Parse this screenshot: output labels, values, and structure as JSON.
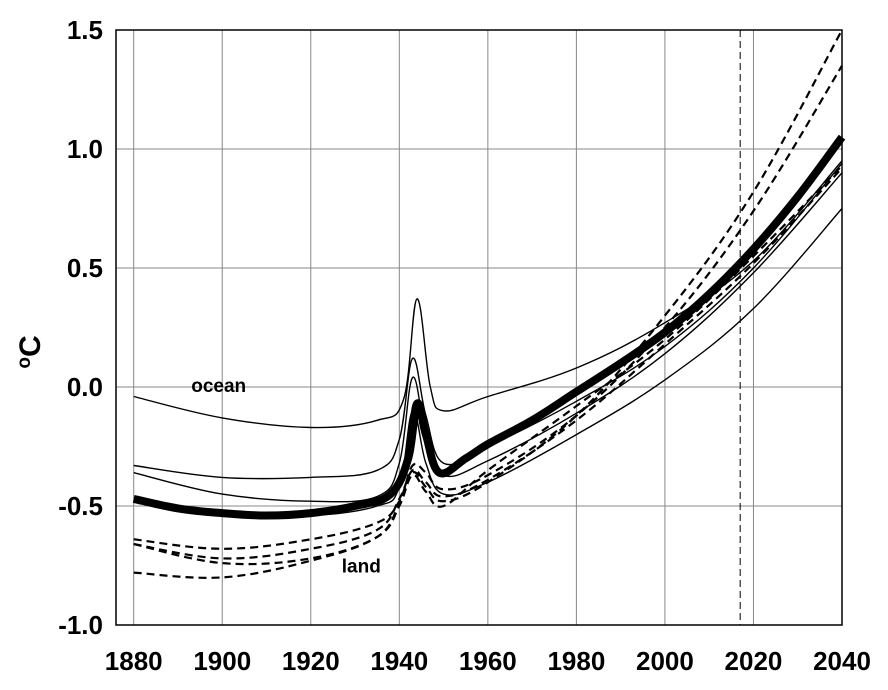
{
  "chart_data": {
    "type": "line",
    "title": "",
    "xlabel": "",
    "ylabel": "oC",
    "ylabel_parts": {
      "degree": "o",
      "unit": "C"
    },
    "xlim": [
      1876,
      2040
    ],
    "ylim": [
      -1.0,
      1.5
    ],
    "x_ticks": [
      1880,
      1900,
      1920,
      1940,
      1960,
      1980,
      2000,
      2020,
      2040
    ],
    "x_tick_labels": [
      "1880",
      "1900",
      "1920",
      "1940",
      "1960",
      "1980",
      "2000",
      "2020",
      "2040"
    ],
    "y_ticks": [
      -1.0,
      -0.5,
      0.0,
      0.5,
      1.0,
      1.5
    ],
    "y_tick_labels": [
      "-1.0",
      "-0.5",
      "0.0",
      "0.5",
      "1.0",
      "1.5"
    ],
    "x_gridlines": [
      1880,
      1900,
      1920,
      1940,
      1960,
      1980,
      2000,
      2020,
      2040
    ],
    "y_gridlines": [
      -0.5,
      0.0,
      0.5,
      1.0
    ],
    "grid": true,
    "vertical_reference_line": {
      "x": 2017,
      "style": "dashed"
    },
    "annotations": [
      {
        "text": "ocean",
        "x": 1893,
        "y": -0.02
      },
      {
        "text": "land",
        "x": 1927,
        "y": -0.78
      }
    ],
    "colors": {
      "lines": "#000000",
      "grid": "#888888",
      "background": "#ffffff"
    },
    "series": [
      {
        "group": "ocean",
        "style": "solid",
        "weight": "thin",
        "x": [
          1880,
          1900,
          1920,
          1935,
          1941,
          1944,
          1947,
          1950,
          1960,
          1980,
          2000,
          2020,
          2040
        ],
        "y": [
          -0.04,
          -0.13,
          -0.17,
          -0.14,
          -0.05,
          0.37,
          0.0,
          -0.1,
          -0.04,
          0.08,
          0.27,
          0.53,
          0.95
        ]
      },
      {
        "group": "ocean",
        "style": "solid",
        "weight": "thin",
        "x": [
          1880,
          1900,
          1920,
          1935,
          1940,
          1943,
          1946,
          1950,
          1960,
          1980,
          2000,
          2020,
          2040
        ],
        "y": [
          -0.33,
          -0.38,
          -0.38,
          -0.35,
          -0.22,
          0.12,
          -0.12,
          -0.32,
          -0.25,
          -0.06,
          0.17,
          0.5,
          0.94
        ]
      },
      {
        "group": "ocean",
        "style": "solid",
        "weight": "thin",
        "x": [
          1880,
          1900,
          1920,
          1935,
          1940,
          1943,
          1946,
          1950,
          1960,
          1980,
          2000,
          2020,
          2040
        ],
        "y": [
          -0.36,
          -0.45,
          -0.48,
          -0.46,
          -0.32,
          0.04,
          -0.2,
          -0.37,
          -0.31,
          -0.11,
          0.14,
          0.48,
          0.9
        ]
      },
      {
        "group": "ocean",
        "style": "solid",
        "weight": "thin",
        "x": [
          1880,
          1900,
          1920,
          1935,
          1940,
          1943,
          1946,
          1950,
          1960,
          1980,
          2000,
          2020,
          2040
        ],
        "y": [
          -0.48,
          -0.53,
          -0.54,
          -0.5,
          -0.42,
          -0.1,
          -0.32,
          -0.45,
          -0.4,
          -0.2,
          0.03,
          0.33,
          0.75
        ]
      },
      {
        "group": "mean",
        "style": "solid",
        "weight": "thick",
        "x": [
          1880,
          1890,
          1900,
          1910,
          1920,
          1930,
          1938,
          1942,
          1944,
          1946,
          1949,
          1955,
          1960,
          1970,
          1980,
          1990,
          2000,
          2010,
          2020,
          2030,
          2040
        ],
        "y": [
          -0.47,
          -0.51,
          -0.53,
          -0.54,
          -0.53,
          -0.5,
          -0.45,
          -0.3,
          -0.07,
          -0.2,
          -0.36,
          -0.3,
          -0.24,
          -0.14,
          -0.02,
          0.1,
          0.23,
          0.39,
          0.58,
          0.8,
          1.05
        ]
      },
      {
        "group": "land",
        "style": "dashed",
        "weight": "medium",
        "x": [
          1880,
          1900,
          1920,
          1935,
          1940,
          1943,
          1946,
          1950,
          1960,
          1980,
          2000,
          2020,
          2040
        ],
        "y": [
          -0.64,
          -0.68,
          -0.64,
          -0.57,
          -0.48,
          -0.33,
          -0.36,
          -0.43,
          -0.37,
          -0.12,
          0.25,
          0.74,
          1.35
        ]
      },
      {
        "group": "land",
        "style": "dashed",
        "weight": "medium",
        "x": [
          1880,
          1900,
          1920,
          1935,
          1940,
          1943,
          1946,
          1950,
          1960,
          1980,
          2000,
          2020,
          2040
        ],
        "y": [
          -0.66,
          -0.74,
          -0.72,
          -0.63,
          -0.5,
          -0.36,
          -0.42,
          -0.48,
          -0.4,
          -0.12,
          0.3,
          0.82,
          1.5
        ]
      },
      {
        "group": "land",
        "style": "dashed",
        "weight": "medium",
        "x": [
          1880,
          1900,
          1920,
          1935,
          1940,
          1943,
          1946,
          1950,
          1960,
          1980,
          2000,
          2020,
          2040
        ],
        "y": [
          -0.78,
          -0.8,
          -0.73,
          -0.63,
          -0.49,
          -0.37,
          -0.44,
          -0.5,
          -0.35,
          -0.08,
          0.2,
          0.55,
          0.93
        ]
      },
      {
        "group": "land",
        "style": "dashed",
        "weight": "medium",
        "x": [
          1880,
          1900,
          1920,
          1935,
          1940,
          1943,
          1946,
          1950,
          1960,
          1980,
          2000,
          2020,
          2040
        ],
        "y": [
          -0.66,
          -0.72,
          -0.68,
          -0.6,
          -0.47,
          -0.35,
          -0.4,
          -0.46,
          -0.39,
          -0.14,
          0.18,
          0.52,
          0.92
        ]
      }
    ]
  }
}
